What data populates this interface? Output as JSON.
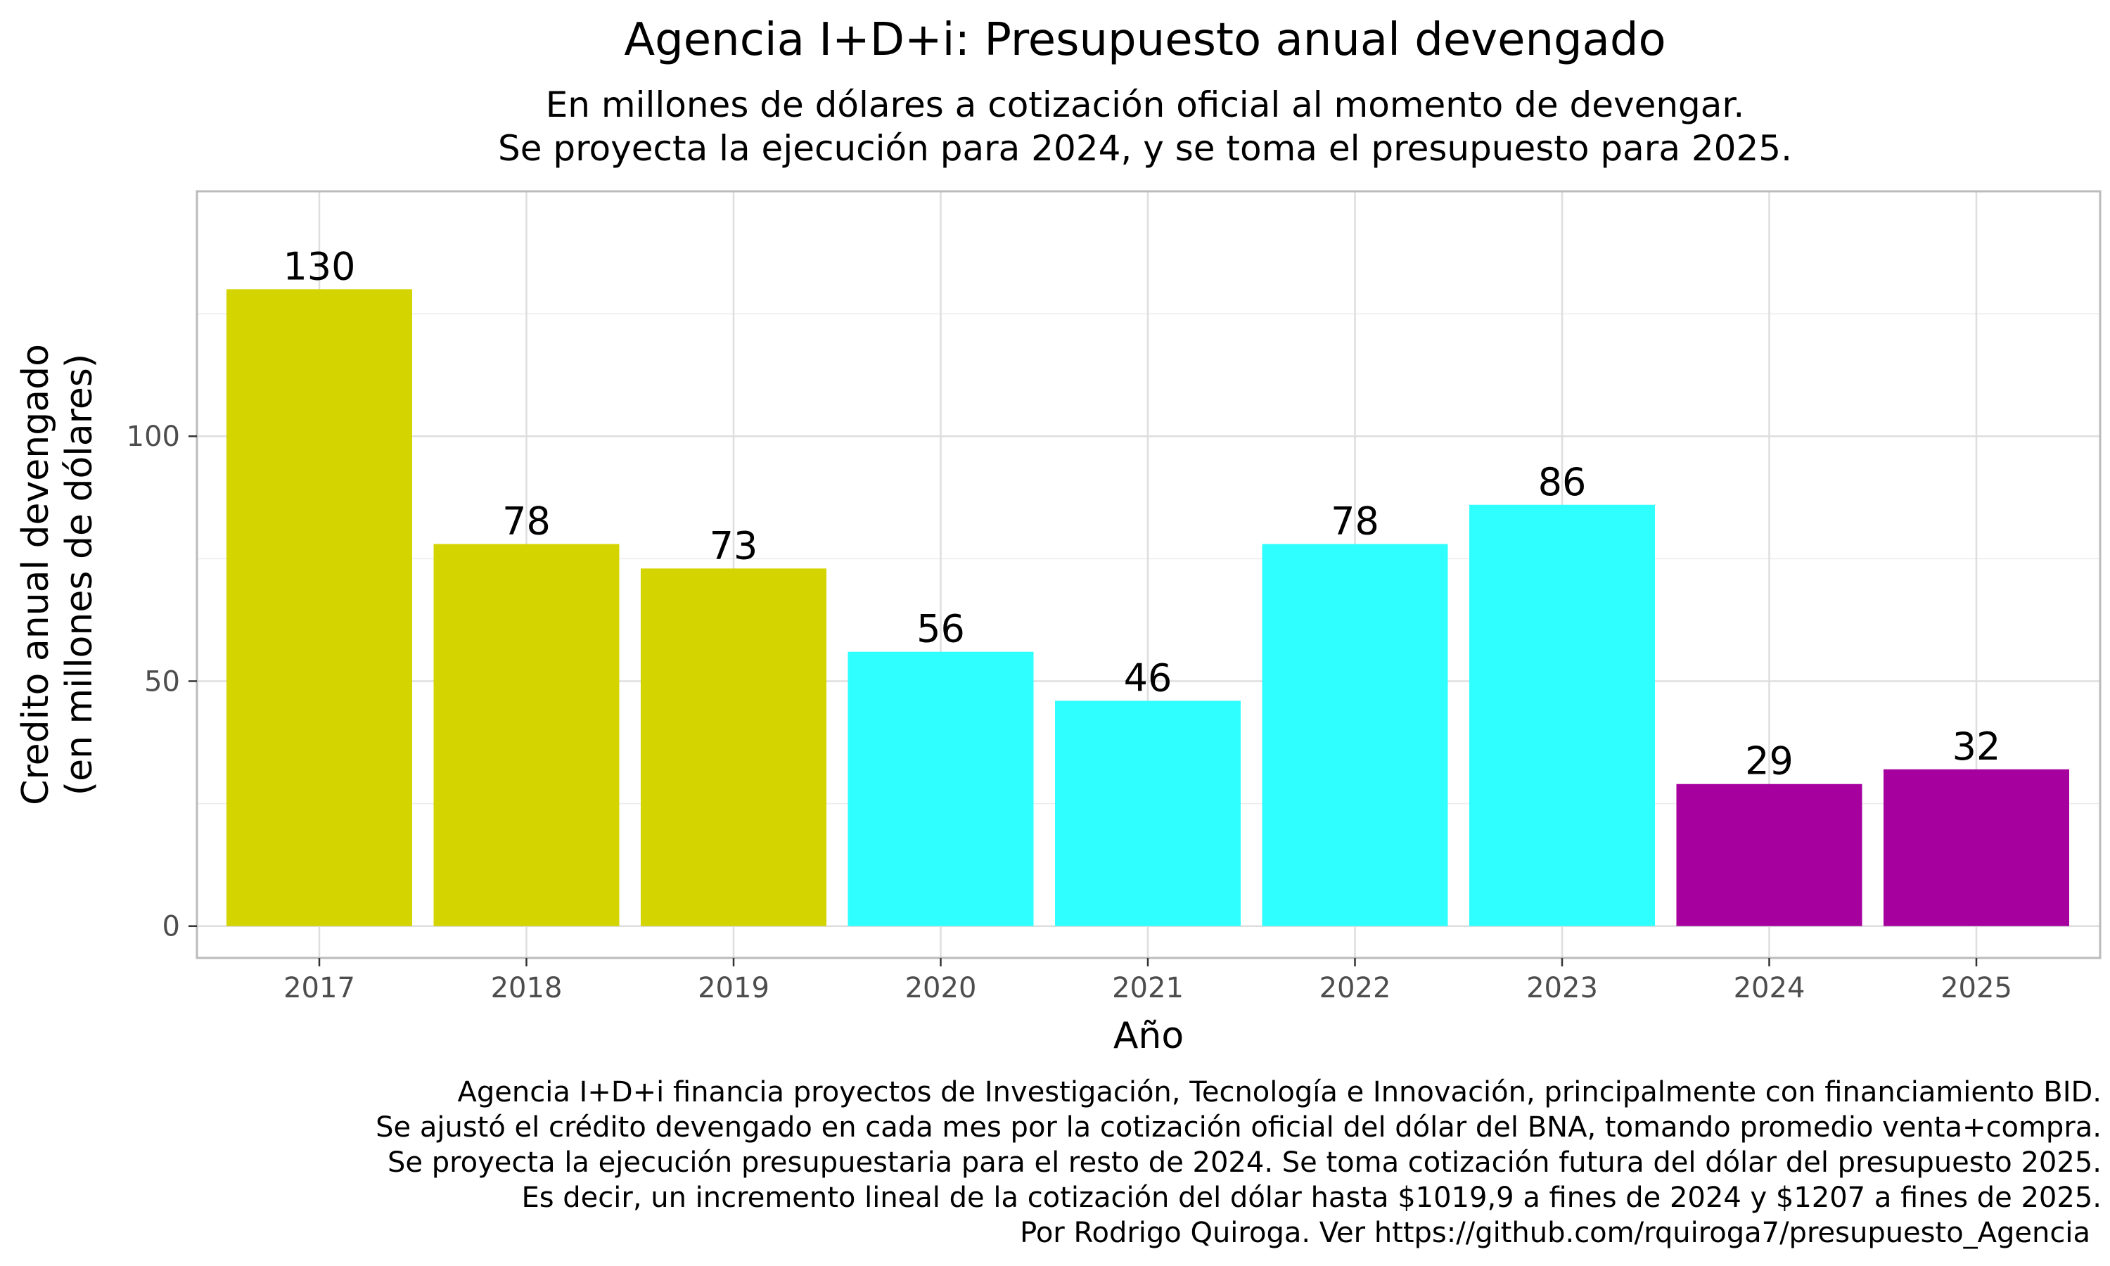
{
  "chart_data": {
    "type": "bar",
    "title": "Agencia I+D+i: Presupuesto anual devengado",
    "subtitle": [
      "En millones de dólares a cotización oficial al momento de devengar.",
      "Se proyecta la ejecución para 2024, y se toma el presupuesto para 2025."
    ],
    "xlabel": "Año",
    "ylabel": [
      "Credito anual devengado",
      "(en millones de dólares)"
    ],
    "categories": [
      "2017",
      "2018",
      "2019",
      "2020",
      "2021",
      "2022",
      "2023",
      "2024",
      "2025"
    ],
    "values": [
      130,
      78,
      73,
      56,
      46,
      78,
      86,
      29,
      32
    ],
    "data_labels": [
      "130",
      "78",
      "73",
      "56",
      "46",
      "78",
      "86",
      "29",
      "32"
    ],
    "bar_colors": [
      "#d4d400",
      "#d4d400",
      "#d4d400",
      "#30ffff",
      "#30ffff",
      "#30ffff",
      "#30ffff",
      "#a6009e",
      "#a6009e"
    ],
    "ylim": [
      -6.5,
      150
    ],
    "yticks": [
      0,
      50,
      100
    ],
    "ytick_labels": [
      "0",
      "50",
      "100"
    ],
    "y_minor_ticks": [
      25,
      75,
      125
    ],
    "grid": true,
    "legend": "none",
    "caption": [
      "Agencia I+D+i financia proyectos de Investigación, Tecnología e Innovación, principalmente con financiamiento BID.",
      "Se ajustó el crédito devengado en cada mes por la cotización oficial del dólar del BNA, tomando promedio venta+compra.",
      "Se proyecta la ejecución presupuestaria para el resto de 2024. Se toma cotización futura del dólar del presupuesto 2025.",
      "Es decir, un incremento lineal de la cotización del dólar hasta $1019,9 a fines de 2024 y $1207 a fines de 2025.",
      "Por Rodrigo Quiroga. Ver https://github.com/rquiroga7/presupuesto_Agencia"
    ]
  }
}
